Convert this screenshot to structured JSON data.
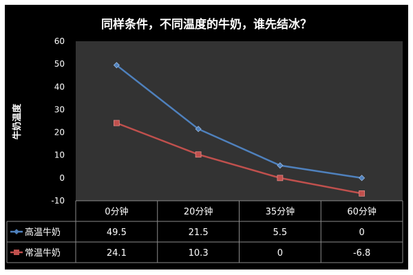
{
  "chart_data": {
    "type": "line",
    "title": "同样条件，不同温度的牛奶，谁先结冰？",
    "ylabel": "牛奶温度",
    "xlabel": "",
    "categories": [
      "0分钟",
      "20分钟",
      "35分钟",
      "60分钟"
    ],
    "ylim": [
      -10,
      60
    ],
    "yticks": [
      60,
      50,
      40,
      30,
      20,
      10,
      0,
      -10
    ],
    "grid": false,
    "legend": "data-table",
    "series": [
      {
        "name": "高温牛奶",
        "values": [
          49.5,
          21.5,
          5.5,
          0
        ],
        "labels": [
          "49.5",
          "21.5",
          "5.5",
          "0"
        ],
        "color": "#4f81bd",
        "marker": "diamond"
      },
      {
        "name": "常温牛奶",
        "values": [
          24.1,
          10.3,
          0,
          -6.8
        ],
        "labels": [
          "24.1",
          "10.3",
          "0",
          "-6.8"
        ],
        "color": "#c0504d",
        "marker": "square"
      }
    ]
  },
  "colors": {
    "background": "#000000",
    "plot_area": "#333333",
    "axis_text": "#ffffff",
    "table_border": "#8c8c8c"
  }
}
